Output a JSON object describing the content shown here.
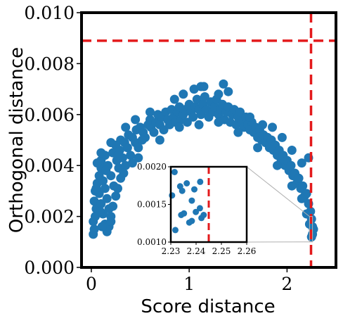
{
  "chart_data": {
    "type": "scatter",
    "xlabel": "Score distance",
    "ylabel": "Orthogonal distance",
    "xlim": [
      -0.1,
      2.5
    ],
    "ylim": [
      0.0,
      0.01
    ],
    "x_ticks": [
      0,
      1,
      2
    ],
    "x_tick_labels": [
      "0",
      "1",
      "2"
    ],
    "y_ticks": [
      0.0,
      0.002,
      0.004,
      0.006,
      0.008,
      0.01
    ],
    "y_tick_labels": [
      "0.000",
      "0.002",
      "0.004",
      "0.006",
      "0.008",
      "0.010"
    ],
    "grid": false,
    "colors": {
      "points": "#1f77b4",
      "threshold": "#e31a1c",
      "connector": "#b0b0b0"
    },
    "thresholds": {
      "score_distance": 2.245,
      "orthogonal_distance": 0.0089
    },
    "points": [
      [
        0.02,
        0.0013
      ],
      [
        0.03,
        0.0015
      ],
      [
        0.02,
        0.0018
      ],
      [
        0.04,
        0.002
      ],
      [
        0.05,
        0.0023
      ],
      [
        0.03,
        0.0026
      ],
      [
        0.04,
        0.003
      ],
      [
        0.06,
        0.0033
      ],
      [
        0.08,
        0.0029
      ],
      [
        0.1,
        0.0025
      ],
      [
        0.12,
        0.0021
      ],
      [
        0.14,
        0.0017
      ],
      [
        0.16,
        0.0014
      ],
      [
        0.18,
        0.0016
      ],
      [
        0.2,
        0.0018
      ],
      [
        0.08,
        0.0036
      ],
      [
        0.1,
        0.0039
      ],
      [
        0.12,
        0.0034
      ],
      [
        0.14,
        0.0031
      ],
      [
        0.16,
        0.0027
      ],
      [
        0.18,
        0.0023
      ],
      [
        0.2,
        0.002
      ],
      [
        0.22,
        0.0024
      ],
      [
        0.1,
        0.0042
      ],
      [
        0.14,
        0.0044
      ],
      [
        0.17,
        0.004
      ],
      [
        0.2,
        0.0036
      ],
      [
        0.23,
        0.0032
      ],
      [
        0.25,
        0.0028
      ],
      [
        0.22,
        0.0045
      ],
      [
        0.26,
        0.0042
      ],
      [
        0.28,
        0.0039
      ],
      [
        0.3,
        0.0035
      ],
      [
        0.27,
        0.0031
      ],
      [
        0.25,
        0.0048
      ],
      [
        0.29,
        0.0046
      ],
      [
        0.32,
        0.0043
      ],
      [
        0.35,
        0.004
      ],
      [
        0.33,
        0.0037
      ],
      [
        0.3,
        0.005
      ],
      [
        0.34,
        0.0049
      ],
      [
        0.37,
        0.0047
      ],
      [
        0.4,
        0.0044
      ],
      [
        0.42,
        0.0041
      ],
      [
        0.38,
        0.0052
      ],
      [
        0.42,
        0.0051
      ],
      [
        0.45,
        0.0049
      ],
      [
        0.48,
        0.0047
      ],
      [
        0.46,
        0.0054
      ],
      [
        0.5,
        0.0055
      ],
      [
        0.53,
        0.0053
      ],
      [
        0.55,
        0.0051
      ],
      [
        0.52,
        0.005
      ],
      [
        0.58,
        0.0056
      ],
      [
        0.61,
        0.0055
      ],
      [
        0.64,
        0.0053
      ],
      [
        0.6,
        0.0058
      ],
      [
        0.66,
        0.0057
      ],
      [
        0.68,
        0.006
      ],
      [
        0.7,
        0.0056
      ],
      [
        0.72,
        0.0059
      ],
      [
        0.74,
        0.0054
      ],
      [
        0.76,
        0.0061
      ],
      [
        0.78,
        0.0058
      ],
      [
        0.8,
        0.0056
      ],
      [
        0.82,
        0.0062
      ],
      [
        0.84,
        0.0059
      ],
      [
        0.86,
        0.0057
      ],
      [
        0.88,
        0.0061
      ],
      [
        0.9,
        0.0063
      ],
      [
        0.92,
        0.0058
      ],
      [
        0.94,
        0.006
      ],
      [
        0.96,
        0.0062
      ],
      [
        0.98,
        0.0057
      ],
      [
        1.0,
        0.0064
      ],
      [
        1.02,
        0.0061
      ],
      [
        1.04,
        0.0059
      ],
      [
        1.06,
        0.0063
      ],
      [
        1.08,
        0.0066
      ],
      [
        1.1,
        0.0062
      ],
      [
        1.12,
        0.006
      ],
      [
        1.14,
        0.0064
      ],
      [
        1.16,
        0.0067
      ],
      [
        1.18,
        0.0062
      ],
      [
        1.2,
        0.0059
      ],
      [
        1.22,
        0.0065
      ],
      [
        1.24,
        0.0061
      ],
      [
        1.26,
        0.0063
      ],
      [
        1.28,
        0.0066
      ],
      [
        1.3,
        0.006
      ],
      [
        1.32,
        0.0062
      ],
      [
        1.34,
        0.0064
      ],
      [
        1.36,
        0.0058
      ],
      [
        1.38,
        0.0061
      ],
      [
        1.4,
        0.0063
      ],
      [
        1.42,
        0.0057
      ],
      [
        1.44,
        0.006
      ],
      [
        1.46,
        0.0062
      ],
      [
        1.48,
        0.0056
      ],
      [
        1.5,
        0.0059
      ],
      [
        1.52,
        0.0061
      ],
      [
        1.54,
        0.0057
      ],
      [
        1.56,
        0.0055
      ],
      [
        1.58,
        0.0059
      ],
      [
        1.6,
        0.0056
      ],
      [
        1.62,
        0.0054
      ],
      [
        1.64,
        0.0057
      ],
      [
        1.66,
        0.0053
      ],
      [
        1.68,
        0.0055
      ],
      [
        1.7,
        0.0051
      ],
      [
        1.72,
        0.0054
      ],
      [
        1.74,
        0.005
      ],
      [
        1.76,
        0.0052
      ],
      [
        1.78,
        0.0049
      ],
      [
        1.8,
        0.0051
      ],
      [
        1.82,
        0.0047
      ],
      [
        1.84,
        0.005
      ],
      [
        1.86,
        0.0046
      ],
      [
        1.88,
        0.0048
      ],
      [
        1.9,
        0.0044
      ],
      [
        1.92,
        0.0046
      ],
      [
        1.94,
        0.0042
      ],
      [
        1.96,
        0.0044
      ],
      [
        1.98,
        0.004
      ],
      [
        2.0,
        0.0042
      ],
      [
        2.02,
        0.0038
      ],
      [
        2.04,
        0.004
      ],
      [
        2.06,
        0.0036
      ],
      [
        2.08,
        0.0037
      ],
      [
        2.1,
        0.0033
      ],
      [
        2.12,
        0.0035
      ],
      [
        2.14,
        0.0031
      ],
      [
        2.16,
        0.0032
      ],
      [
        2.18,
        0.0028
      ],
      [
        2.2,
        0.0029
      ],
      [
        2.22,
        0.0025
      ],
      [
        2.24,
        0.0022
      ],
      [
        2.25,
        0.0019
      ],
      [
        2.26,
        0.0016
      ],
      [
        2.26,
        0.0013
      ],
      [
        2.25,
        0.0012
      ],
      [
        2.23,
        0.0017
      ],
      [
        2.27,
        0.0015
      ],
      [
        0.94,
        0.0068
      ],
      [
        1.05,
        0.007
      ],
      [
        1.12,
        0.0071
      ],
      [
        1.15,
        0.0071
      ],
      [
        1.35,
        0.0072
      ],
      [
        1.4,
        0.0069
      ],
      [
        1.3,
        0.0068
      ],
      [
        0.85,
        0.0066
      ],
      [
        1.62,
        0.0059
      ],
      [
        1.75,
        0.0056
      ],
      [
        1.85,
        0.0055
      ],
      [
        1.95,
        0.0051
      ],
      [
        2.05,
        0.0046
      ],
      [
        2.15,
        0.0041
      ],
      [
        2.22,
        0.0043
      ],
      [
        0.6,
        0.0061
      ],
      [
        0.45,
        0.0058
      ],
      [
        0.35,
        0.0055
      ],
      [
        0.2,
        0.0049
      ],
      [
        0.1,
        0.0045
      ],
      [
        0.48,
        0.0043
      ],
      [
        0.7,
        0.005
      ],
      [
        0.9,
        0.0055
      ],
      [
        1.1,
        0.0056
      ],
      [
        1.3,
        0.0057
      ],
      [
        1.5,
        0.0053
      ],
      [
        1.7,
        0.0047
      ],
      [
        1.9,
        0.004
      ],
      [
        2.05,
        0.0032
      ],
      [
        2.15,
        0.0027
      ],
      [
        2.2,
        0.0021
      ],
      [
        0.15,
        0.0038
      ],
      [
        0.06,
        0.0041
      ],
      [
        0.09,
        0.0022
      ],
      [
        0.11,
        0.0016
      ],
      [
        0.05,
        0.0031
      ],
      [
        0.27,
        0.0044
      ]
    ],
    "inset": {
      "xlim": [
        2.23,
        2.26
      ],
      "ylim": [
        0.001,
        0.002
      ],
      "x_ticks": [
        2.23,
        2.24,
        2.25,
        2.26
      ],
      "x_tick_labels": [
        "2.23",
        "2.24",
        "2.25",
        "2.26"
      ],
      "y_ticks": [
        0.001,
        0.0015,
        0.002
      ],
      "y_tick_labels": [
        "0.0010",
        "0.0015",
        "0.0020"
      ],
      "points": [
        [
          2.2315,
          0.00193
        ],
        [
          2.2305,
          0.00162
        ],
        [
          2.2337,
          0.00174
        ],
        [
          2.2345,
          0.00168
        ],
        [
          2.2363,
          0.00178
        ],
        [
          2.2383,
          0.00155
        ],
        [
          2.2393,
          0.0017
        ],
        [
          2.2416,
          0.0018
        ],
        [
          2.2421,
          0.00132
        ],
        [
          2.243,
          0.00136
        ],
        [
          2.2341,
          0.00136
        ],
        [
          2.2352,
          0.00138
        ],
        [
          2.2373,
          0.00126
        ],
        [
          2.2383,
          0.00128
        ],
        [
          2.2318,
          0.00116
        ],
        [
          2.2399,
          0.0014
        ],
        [
          2.2415,
          0.00145
        ]
      ]
    }
  }
}
